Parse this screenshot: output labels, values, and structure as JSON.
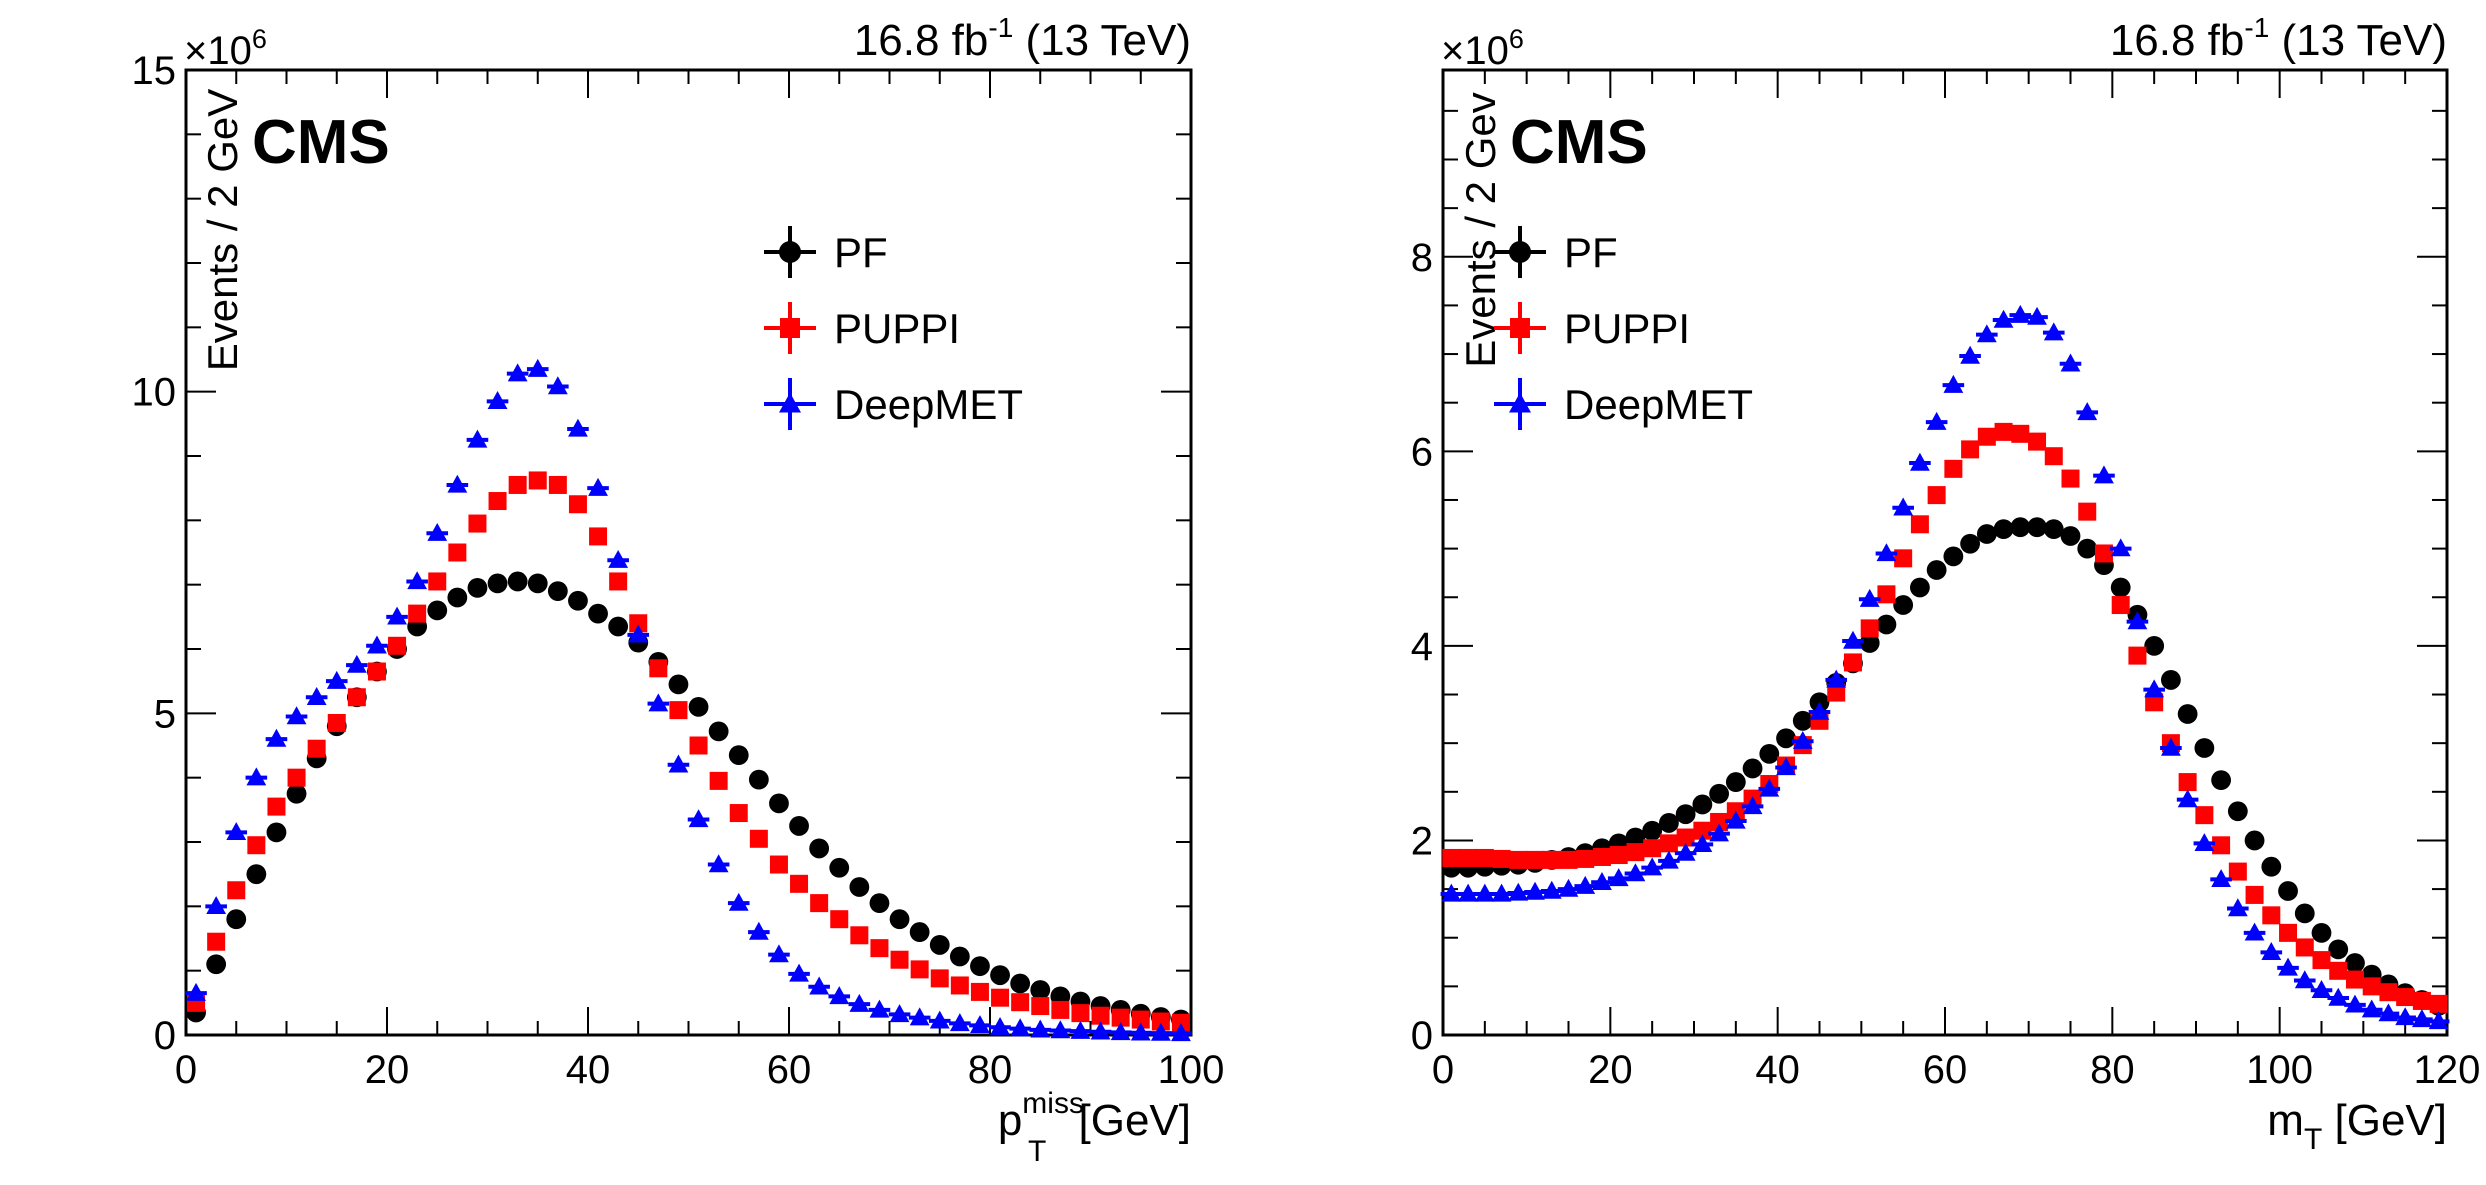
{
  "chart_data": [
    {
      "type": "scatter",
      "experiment_label": "CMS",
      "lumi_label": {
        "value": "16.8 fb",
        "sup": "-1",
        "energy": " (13 TeV)"
      },
      "exponent_label": {
        "base": "×10",
        "sup": "6"
      },
      "xlabel": {
        "main": "p",
        "sup": "miss",
        "sub": "T",
        "unit": " [GeV]"
      },
      "ylabel": "Events / 2 GeV",
      "xlim": [
        0,
        100
      ],
      "ylim": [
        0,
        15
      ],
      "y_scale": 1000000,
      "x_ticks": [
        0,
        20,
        40,
        60,
        80,
        100
      ],
      "x_tick_labels": [
        "0",
        "20",
        "40",
        "60",
        "80",
        "100"
      ],
      "y_ticks": [
        0,
        5,
        10,
        15
      ],
      "y_tick_labels": [
        "0",
        "5",
        "10",
        "15"
      ],
      "grid": false,
      "legend_position": "upper-right-center",
      "x": [
        1,
        3,
        5,
        7,
        9,
        11,
        13,
        15,
        17,
        19,
        21,
        23,
        25,
        27,
        29,
        31,
        33,
        35,
        37,
        39,
        41,
        43,
        45,
        47,
        49,
        51,
        53,
        55,
        57,
        59,
        61,
        63,
        65,
        67,
        69,
        71,
        73,
        75,
        77,
        79,
        81,
        83,
        85,
        87,
        89,
        91,
        93,
        95,
        97,
        99
      ],
      "series": [
        {
          "name": "PF",
          "color": "#000000",
          "marker": "circle",
          "values": [
            0.35,
            1.1,
            1.8,
            2.5,
            3.15,
            3.75,
            4.3,
            4.8,
            5.25,
            5.65,
            6.0,
            6.35,
            6.6,
            6.8,
            6.95,
            7.02,
            7.05,
            7.02,
            6.9,
            6.75,
            6.55,
            6.35,
            6.1,
            5.8,
            5.45,
            5.1,
            4.72,
            4.35,
            3.97,
            3.6,
            3.25,
            2.9,
            2.6,
            2.3,
            2.05,
            1.8,
            1.6,
            1.4,
            1.22,
            1.07,
            0.93,
            0.8,
            0.7,
            0.6,
            0.52,
            0.45,
            0.39,
            0.33,
            0.28,
            0.24
          ]
        },
        {
          "name": "PUPPI",
          "color": "#ff0000",
          "marker": "square",
          "values": [
            0.5,
            1.45,
            2.25,
            2.95,
            3.55,
            4.0,
            4.45,
            4.85,
            5.25,
            5.65,
            6.05,
            6.55,
            7.05,
            7.5,
            7.95,
            8.3,
            8.55,
            8.62,
            8.55,
            8.25,
            7.75,
            7.05,
            6.4,
            5.7,
            5.05,
            4.5,
            3.95,
            3.45,
            3.05,
            2.65,
            2.35,
            2.05,
            1.8,
            1.55,
            1.35,
            1.17,
            1.02,
            0.88,
            0.77,
            0.67,
            0.58,
            0.51,
            0.45,
            0.39,
            0.34,
            0.3,
            0.27,
            0.24,
            0.21,
            0.19
          ]
        },
        {
          "name": "DeepMET",
          "color": "#0000ff",
          "marker": "triangle",
          "values": [
            0.65,
            2.0,
            3.15,
            4.0,
            4.6,
            4.95,
            5.25,
            5.5,
            5.75,
            6.05,
            6.5,
            7.05,
            7.8,
            8.55,
            9.25,
            9.85,
            10.28,
            10.35,
            10.08,
            9.42,
            8.5,
            7.38,
            6.22,
            5.15,
            4.2,
            3.35,
            2.65,
            2.05,
            1.6,
            1.25,
            0.95,
            0.75,
            0.6,
            0.48,
            0.39,
            0.32,
            0.27,
            0.22,
            0.18,
            0.15,
            0.12,
            0.1,
            0.08,
            0.07,
            0.06,
            0.05,
            0.04,
            0.035,
            0.03,
            0.025
          ]
        }
      ]
    },
    {
      "type": "scatter",
      "experiment_label": "CMS",
      "lumi_label": {
        "value": "16.8 fb",
        "sup": "-1",
        "energy": " (13 TeV)"
      },
      "exponent_label": {
        "base": "×10",
        "sup": "6"
      },
      "xlabel": {
        "main": "m",
        "sup": "",
        "sub": "T",
        "unit": " [GeV]"
      },
      "ylabel": "Events / 2 Gev",
      "xlim": [
        0,
        120
      ],
      "ylim": [
        0,
        9.92
      ],
      "y_scale": 1000000,
      "x_ticks": [
        0,
        20,
        40,
        60,
        80,
        100,
        120
      ],
      "x_tick_labels": [
        "0",
        "20",
        "40",
        "60",
        "80",
        "100",
        "120"
      ],
      "y_ticks": [
        0,
        2,
        4,
        6,
        8
      ],
      "y_tick_labels": [
        "0",
        "2",
        "4",
        "6",
        "8"
      ],
      "grid": false,
      "legend_position": "upper-left",
      "x": [
        1,
        3,
        5,
        7,
        9,
        11,
        13,
        15,
        17,
        19,
        21,
        23,
        25,
        27,
        29,
        31,
        33,
        35,
        37,
        39,
        41,
        43,
        45,
        47,
        49,
        51,
        53,
        55,
        57,
        59,
        61,
        63,
        65,
        67,
        69,
        71,
        73,
        75,
        77,
        79,
        81,
        83,
        85,
        87,
        89,
        91,
        93,
        95,
        97,
        99,
        101,
        103,
        105,
        107,
        109,
        111,
        113,
        115,
        117,
        119
      ],
      "series": [
        {
          "name": "PF",
          "color": "#000000",
          "marker": "circle",
          "values": [
            1.72,
            1.72,
            1.73,
            1.74,
            1.75,
            1.77,
            1.8,
            1.83,
            1.87,
            1.92,
            1.97,
            2.03,
            2.1,
            2.18,
            2.27,
            2.37,
            2.48,
            2.6,
            2.74,
            2.89,
            3.05,
            3.23,
            3.42,
            3.62,
            3.82,
            4.03,
            4.22,
            4.42,
            4.6,
            4.78,
            4.92,
            5.05,
            5.15,
            5.2,
            5.22,
            5.22,
            5.2,
            5.13,
            5.0,
            4.83,
            4.6,
            4.32,
            4.0,
            3.65,
            3.3,
            2.95,
            2.62,
            2.3,
            2.0,
            1.73,
            1.48,
            1.25,
            1.05,
            0.88,
            0.74,
            0.62,
            0.52,
            0.43,
            0.36,
            0.3
          ]
        },
        {
          "name": "PUPPI",
          "color": "#ff0000",
          "marker": "square",
          "values": [
            1.82,
            1.82,
            1.82,
            1.81,
            1.8,
            1.8,
            1.8,
            1.8,
            1.81,
            1.83,
            1.85,
            1.88,
            1.92,
            1.97,
            2.03,
            2.1,
            2.19,
            2.3,
            2.43,
            2.58,
            2.77,
            2.98,
            3.23,
            3.52,
            3.83,
            4.18,
            4.53,
            4.9,
            5.25,
            5.55,
            5.82,
            6.02,
            6.15,
            6.2,
            6.18,
            6.1,
            5.95,
            5.72,
            5.38,
            4.95,
            4.42,
            3.9,
            3.42,
            3.0,
            2.6,
            2.26,
            1.95,
            1.68,
            1.44,
            1.23,
            1.05,
            0.9,
            0.77,
            0.66,
            0.57,
            0.5,
            0.44,
            0.39,
            0.35,
            0.32
          ]
        },
        {
          "name": "DeepMET",
          "color": "#0000ff",
          "marker": "triangle",
          "values": [
            1.45,
            1.45,
            1.45,
            1.45,
            1.46,
            1.47,
            1.48,
            1.5,
            1.53,
            1.57,
            1.61,
            1.66,
            1.72,
            1.79,
            1.87,
            1.96,
            2.07,
            2.2,
            2.35,
            2.53,
            2.75,
            3.02,
            3.32,
            3.65,
            4.05,
            4.48,
            4.95,
            5.42,
            5.88,
            6.3,
            6.68,
            6.98,
            7.2,
            7.35,
            7.4,
            7.38,
            7.22,
            6.9,
            6.4,
            5.75,
            5.0,
            4.25,
            3.55,
            2.95,
            2.42,
            1.97,
            1.6,
            1.3,
            1.05,
            0.85,
            0.69,
            0.56,
            0.46,
            0.38,
            0.31,
            0.26,
            0.22,
            0.18,
            0.16,
            0.14
          ]
        }
      ]
    }
  ]
}
